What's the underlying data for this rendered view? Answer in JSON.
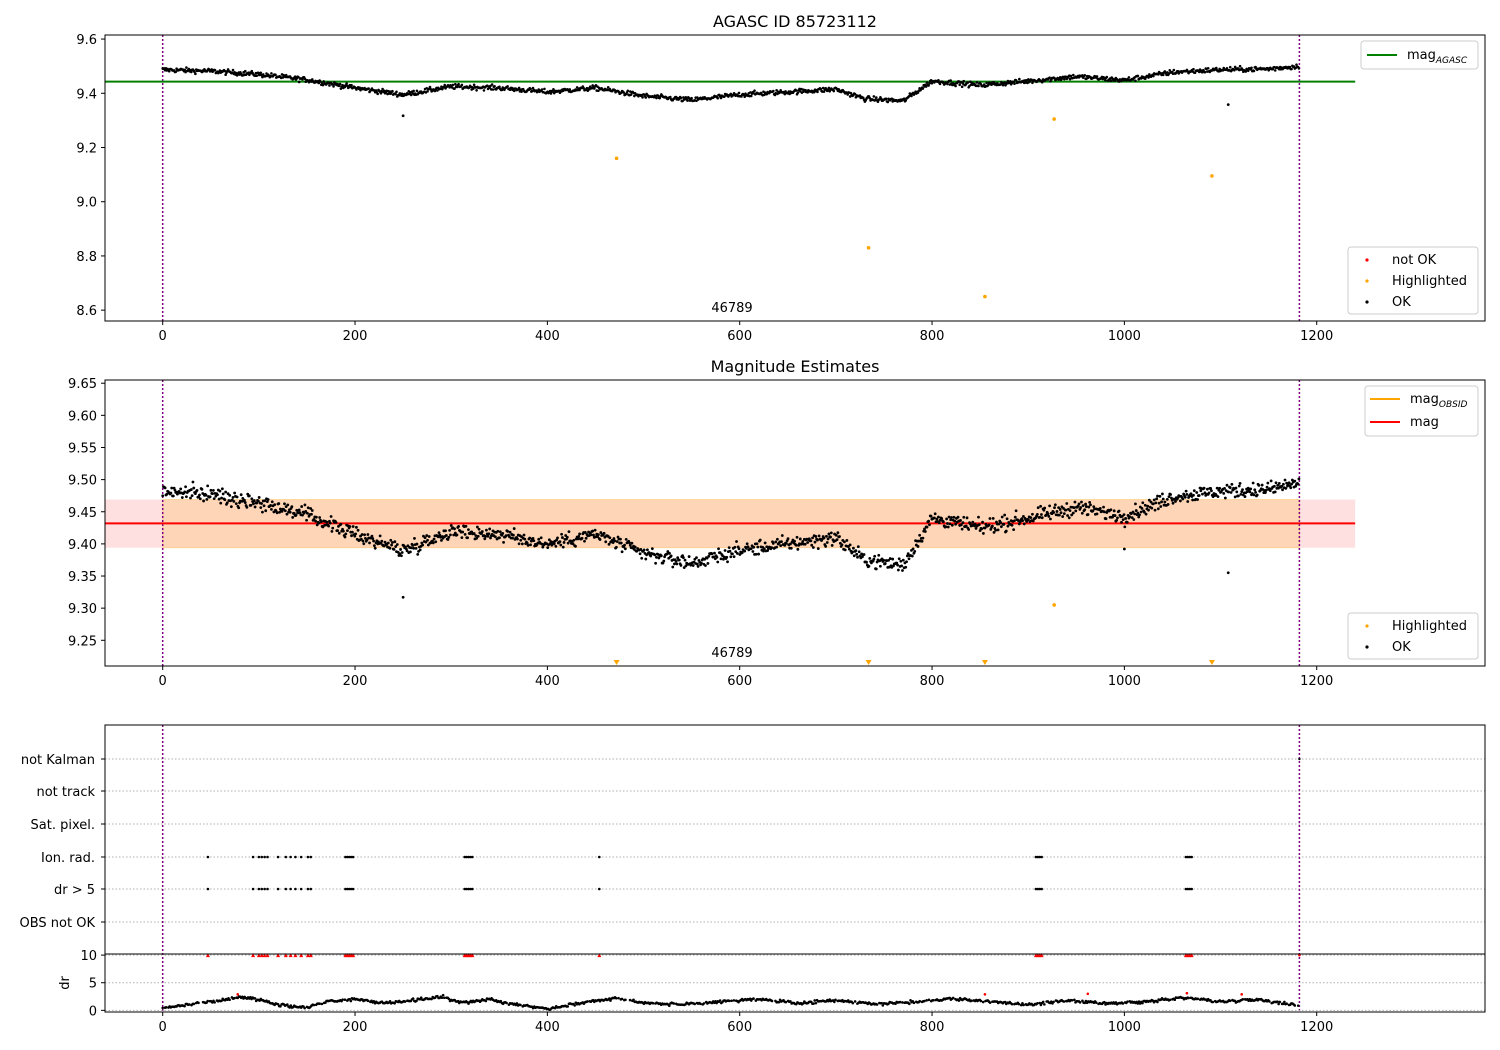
{
  "chart_data": [
    {
      "type": "scatter",
      "title": "AGASC ID 85723112",
      "xlabel": "",
      "ylabel": "",
      "xlim": [
        -60,
        1375
      ],
      "ylim": [
        8.56,
        9.615
      ],
      "xticks": [
        0,
        200,
        400,
        600,
        800,
        1000,
        1200
      ],
      "yticks": [
        8.6,
        8.8,
        9.0,
        9.2,
        9.4,
        9.6
      ],
      "ytick_labels": [
        "8.6",
        "8.8",
        "9.0",
        "9.2",
        "9.4",
        "9.6"
      ],
      "obsid_label": "46789",
      "obsid_label_x": 592,
      "vlines_x": [
        0,
        1182
      ],
      "hline": {
        "name": "mag_AGASC",
        "label_main": "mag",
        "label_sub": "AGASC",
        "y": 9.443,
        "x_range": [
          -60,
          1240
        ],
        "color": "#008000"
      },
      "series": [
        {
          "name": "not OK",
          "color": "#ff0000",
          "points": []
        },
        {
          "name": "Highlighted",
          "color": "#ffa500",
          "points": [
            [
              472,
              9.16
            ],
            [
              734,
              8.83
            ],
            [
              855,
              8.65
            ],
            [
              927,
              9.305
            ],
            [
              1091,
              9.095
            ]
          ]
        },
        {
          "name": "OK",
          "color": "#000000",
          "outliers": [
            [
              250,
              9.317
            ],
            [
              1108,
              9.358
            ]
          ]
        }
      ],
      "ok_trend": [
        [
          0,
          9.487
        ],
        [
          50,
          9.482
        ],
        [
          100,
          9.47
        ],
        [
          150,
          9.45
        ],
        [
          200,
          9.42
        ],
        [
          250,
          9.395
        ],
        [
          300,
          9.425
        ],
        [
          350,
          9.42
        ],
        [
          400,
          9.405
        ],
        [
          450,
          9.42
        ],
        [
          500,
          9.39
        ],
        [
          550,
          9.375
        ],
        [
          600,
          9.395
        ],
        [
          650,
          9.405
        ],
        [
          700,
          9.415
        ],
        [
          730,
          9.38
        ],
        [
          770,
          9.372
        ],
        [
          800,
          9.445
        ],
        [
          850,
          9.43
        ],
        [
          900,
          9.445
        ],
        [
          950,
          9.462
        ],
        [
          1000,
          9.448
        ],
        [
          1050,
          9.478
        ],
        [
          1100,
          9.487
        ],
        [
          1150,
          9.49
        ],
        [
          1182,
          9.5
        ]
      ],
      "legend": {
        "position": "top-right",
        "entries": [
          {
            "main": "mag",
            "sub": "AGASC",
            "color": "#008000"
          }
        ]
      },
      "legend2": {
        "position": "lower-right",
        "entries": [
          "not OK",
          "Highlighted",
          "OK"
        ]
      }
    },
    {
      "type": "scatter",
      "title": "Magnitude Estimates",
      "xlabel": "",
      "ylabel": "",
      "xlim": [
        -60,
        1375
      ],
      "ylim": [
        9.21,
        9.655
      ],
      "xticks": [
        0,
        200,
        400,
        600,
        800,
        1000,
        1200
      ],
      "yticks": [
        9.25,
        9.3,
        9.35,
        9.4,
        9.45,
        9.5,
        9.55,
        9.6,
        9.65
      ],
      "ytick_labels": [
        "9.25",
        "9.30",
        "9.35",
        "9.40",
        "9.45",
        "9.50",
        "9.55",
        "9.60",
        "9.65"
      ],
      "obsid_label": "46789",
      "obsid_label_x": 592,
      "vlines_x": [
        0,
        1182
      ],
      "mag": {
        "y": 9.432,
        "band": [
          9.394,
          9.469
        ],
        "x_range": [
          -60,
          1240
        ],
        "color": "#ff0000"
      },
      "mag_obsid": {
        "y": 9.432,
        "band": [
          9.394,
          9.469
        ],
        "x_range": [
          0,
          1182
        ],
        "color": "#ffa500"
      },
      "series": [
        {
          "name": "Highlighted",
          "color": "#ffa500",
          "points": [
            [
              927,
              9.305
            ]
          ],
          "clipped_markers_x": [
            472,
            734,
            855,
            1091
          ]
        },
        {
          "name": "OK",
          "color": "#000000",
          "outliers": [
            [
              250,
              9.317
            ],
            [
              1108,
              9.355
            ],
            [
              1000,
              9.392
            ]
          ]
        }
      ],
      "legend": {
        "position": "top-right",
        "entries": [
          {
            "main": "mag",
            "sub": "OBSID",
            "color": "#ffa500"
          },
          {
            "main": "mag",
            "sub": "",
            "color": "#ff0000"
          }
        ]
      },
      "legend2": {
        "position": "lower-right",
        "entries": [
          "Highlighted",
          "OK"
        ]
      }
    },
    {
      "type": "scatter",
      "title": "",
      "xlim": [
        -60,
        1375
      ],
      "xticks": [
        0,
        200,
        400,
        600,
        800,
        1000,
        1200
      ],
      "flag_rows": [
        "not Kalman",
        "not track",
        "Sat. pixel.",
        "Ion. rad.",
        "dr > 5",
        "OBS not OK"
      ],
      "flagged_times": [
        47,
        94,
        100,
        103,
        106,
        109,
        120,
        128,
        133,
        138,
        144,
        151,
        154,
        190,
        192,
        194,
        196,
        198,
        314,
        316,
        318,
        320,
        322,
        454,
        908,
        910,
        912,
        914,
        1064,
        1066,
        1068,
        1070
      ],
      "vlines_x": [
        0,
        1182
      ],
      "dr": {
        "ylabel": "dr",
        "ylim": [
          -0.3,
          10.2
        ],
        "yticks": [
          0,
          5,
          10
        ],
        "ytick_labels": [
          "0",
          "5",
          "10"
        ],
        "hline_y": 10,
        "red_points": [
          [
            78,
            2.9
          ],
          [
            855,
            2.9
          ],
          [
            962,
            3.0
          ],
          [
            1065,
            3.1
          ],
          [
            1122,
            2.9
          ],
          [
            1182,
            10
          ]
        ],
        "trend": [
          [
            0,
            0.3
          ],
          [
            30,
            1.2
          ],
          [
            60,
            1.8
          ],
          [
            80,
            2.4
          ],
          [
            100,
            2.0
          ],
          [
            120,
            1.0
          ],
          [
            150,
            0.5
          ],
          [
            170,
            1.6
          ],
          [
            200,
            2.0
          ],
          [
            230,
            1.3
          ],
          [
            260,
            1.8
          ],
          [
            290,
            2.5
          ],
          [
            310,
            1.4
          ],
          [
            340,
            2.0
          ],
          [
            370,
            1.0
          ],
          [
            400,
            0.3
          ],
          [
            440,
            1.5
          ],
          [
            470,
            2.2
          ],
          [
            500,
            1.4
          ],
          [
            540,
            1.0
          ],
          [
            580,
            1.6
          ],
          [
            620,
            2.0
          ],
          [
            660,
            1.3
          ],
          [
            700,
            1.8
          ],
          [
            740,
            1.2
          ],
          [
            780,
            1.5
          ],
          [
            820,
            2.1
          ],
          [
            860,
            1.6
          ],
          [
            900,
            1.0
          ],
          [
            940,
            1.8
          ],
          [
            980,
            1.2
          ],
          [
            1020,
            1.5
          ],
          [
            1060,
            2.3
          ],
          [
            1100,
            1.6
          ],
          [
            1140,
            2.0
          ],
          [
            1182,
            0.8
          ]
        ]
      }
    }
  ]
}
